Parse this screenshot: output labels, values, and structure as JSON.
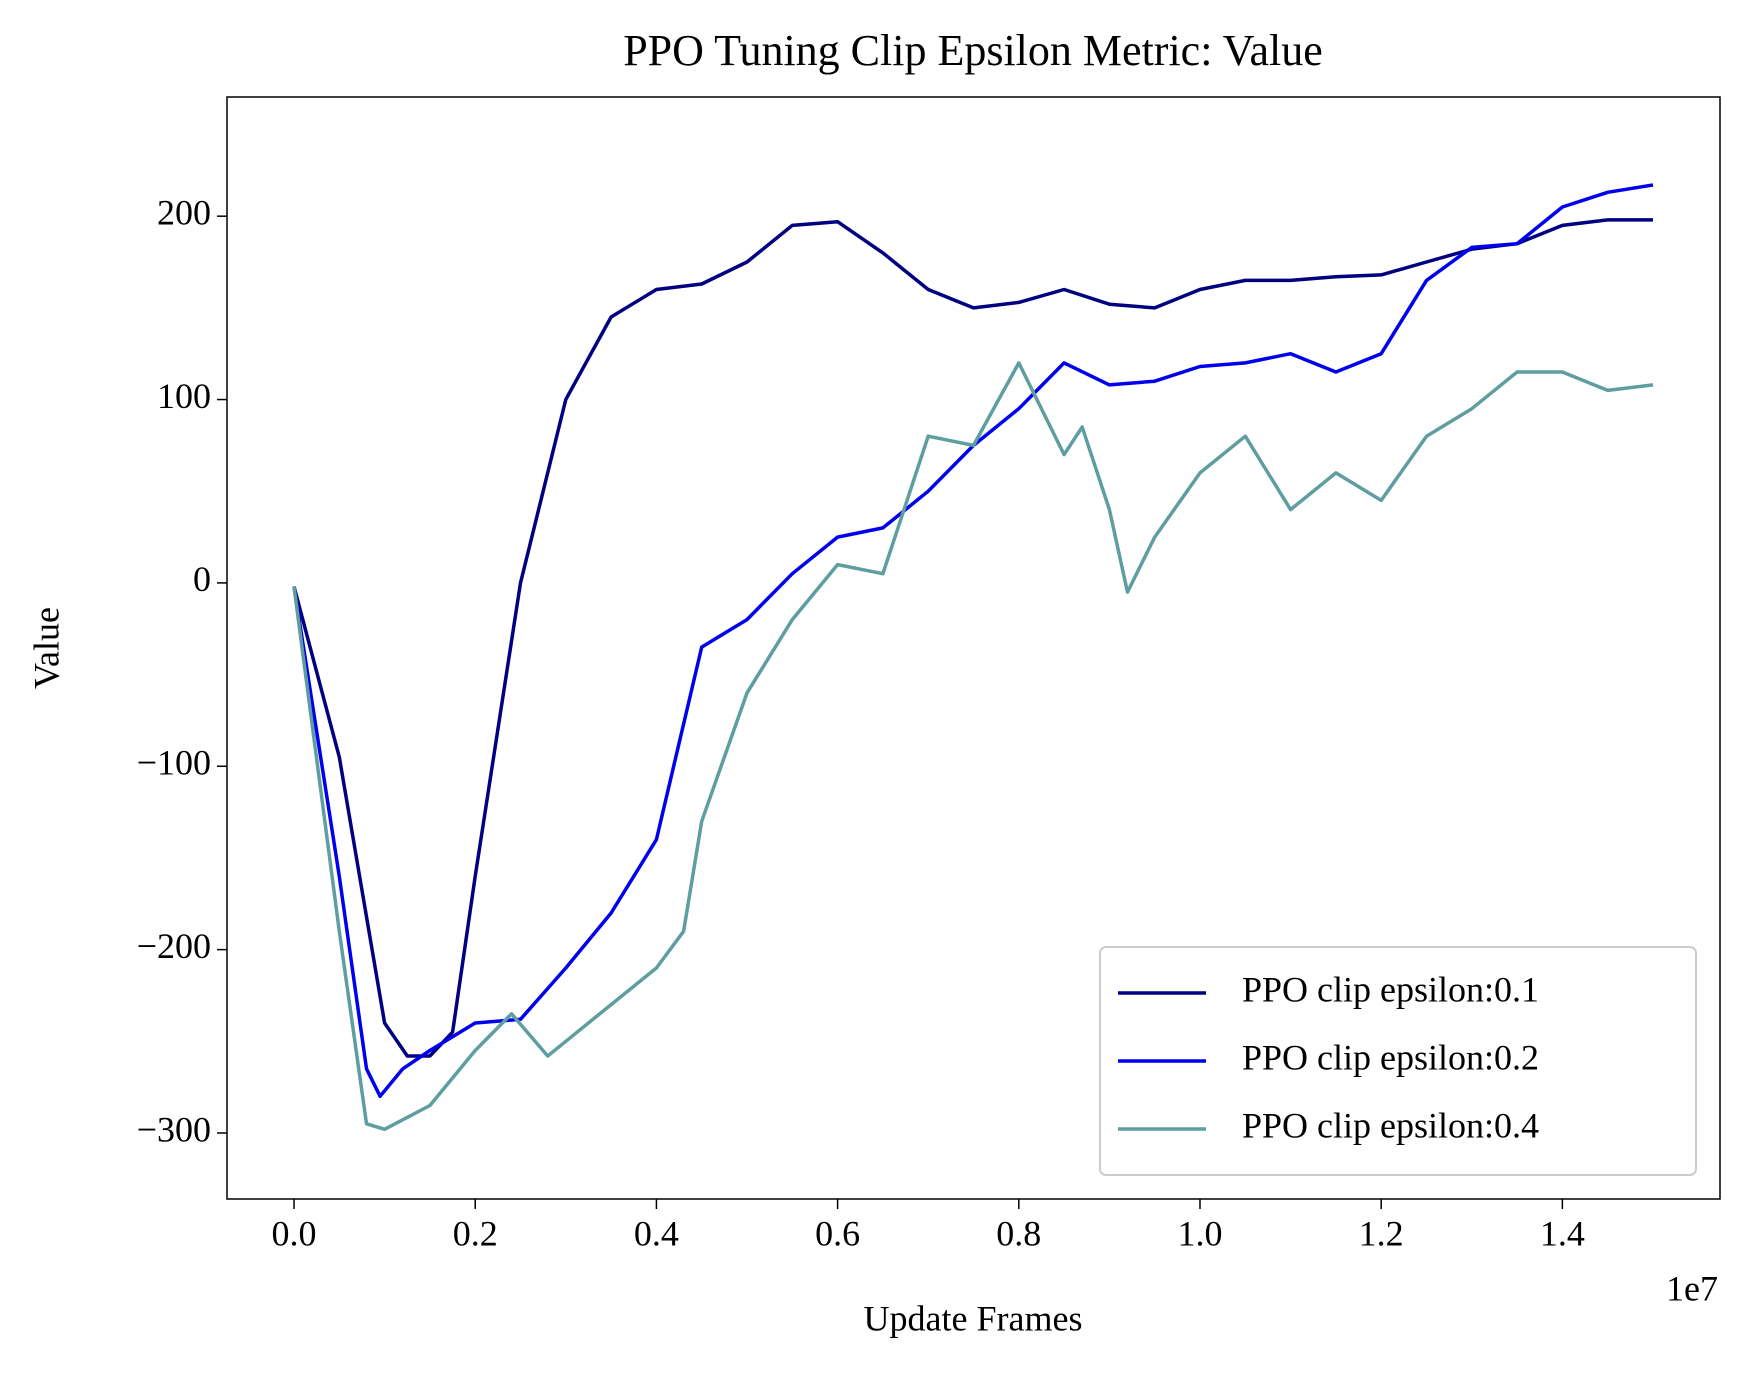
{
  "chart_data": {
    "type": "line",
    "title": "PPO Tuning Clip Epsilon Metric: Value",
    "x_label": "Update Frames",
    "y_label": "Value",
    "x_offset_label": "1e7",
    "xlim": [
      -0.074,
      1.574
    ],
    "ylim": [
      -336,
      265
    ],
    "xticks": [
      {
        "value": 0,
        "label": "0.0"
      },
      0.2,
      0.4,
      0.6,
      0.8,
      {
        "value": 1,
        "label": "1.0"
      },
      1.2,
      1.4
    ],
    "yticks": [
      {
        "value": -300,
        "label": "−300"
      },
      {
        "value": -200,
        "label": "−200"
      },
      {
        "value": -100,
        "label": "−100"
      },
      0,
      100,
      200
    ],
    "grid": false,
    "legend": "lower right",
    "series": [
      {
        "name": "PPO clip epsilon:0.1",
        "color": "#000080",
        "x": [
          0,
          0.05,
          0.1,
          0.125,
          0.15,
          0.175,
          0.2,
          0.25,
          0.3,
          0.35,
          0.4,
          0.45,
          0.5,
          0.55,
          0.6,
          0.65,
          0.7,
          0.75,
          0.8,
          0.85,
          0.9,
          0.95,
          1.0,
          1.05,
          1.1,
          1.15,
          1.2,
          1.25,
          1.3,
          1.35,
          1.4,
          1.45,
          1.5
        ],
        "values": [
          -2,
          -95,
          -240,
          -258,
          -258,
          -245,
          -160,
          0,
          100,
          145,
          160,
          163,
          175,
          195,
          197,
          180,
          160,
          150,
          153,
          160,
          152,
          150,
          160,
          165,
          165,
          167,
          168,
          175,
          182,
          185,
          195,
          198,
          198
        ]
      },
      {
        "name": "PPO clip epsilon:0.2",
        "color": "#0000ee",
        "x": [
          0,
          0.05,
          0.08,
          0.095,
          0.12,
          0.15,
          0.2,
          0.25,
          0.3,
          0.35,
          0.4,
          0.45,
          0.5,
          0.55,
          0.6,
          0.65,
          0.7,
          0.75,
          0.8,
          0.85,
          0.9,
          0.95,
          1.0,
          1.05,
          1.1,
          1.15,
          1.2,
          1.25,
          1.3,
          1.35,
          1.4,
          1.45,
          1.5
        ],
        "values": [
          -2,
          -160,
          -265,
          -280,
          -265,
          -255,
          -240,
          -238,
          -210,
          -180,
          -140,
          -35,
          -20,
          5,
          25,
          30,
          50,
          75,
          95,
          120,
          108,
          110,
          118,
          120,
          125,
          115,
          125,
          165,
          183,
          185,
          205,
          213,
          217
        ]
      },
      {
        "name": "PPO clip epsilon:0.4",
        "color": "#5f9ea0",
        "x": [
          0,
          0.05,
          0.08,
          0.1,
          0.15,
          0.2,
          0.24,
          0.28,
          0.3,
          0.35,
          0.4,
          0.43,
          0.45,
          0.5,
          0.55,
          0.6,
          0.65,
          0.7,
          0.75,
          0.8,
          0.85,
          0.87,
          0.9,
          0.92,
          0.95,
          1.0,
          1.05,
          1.1,
          1.15,
          1.2,
          1.25,
          1.3,
          1.35,
          1.4,
          1.45,
          1.5
        ],
        "values": [
          -2,
          -190,
          -295,
          -298,
          -285,
          -255,
          -235,
          -258,
          -250,
          -230,
          -210,
          -190,
          -130,
          -60,
          -20,
          10,
          5,
          80,
          75,
          120,
          70,
          85,
          40,
          -5,
          25,
          60,
          80,
          40,
          60,
          45,
          80,
          95,
          115,
          115,
          105,
          108
        ]
      }
    ]
  }
}
